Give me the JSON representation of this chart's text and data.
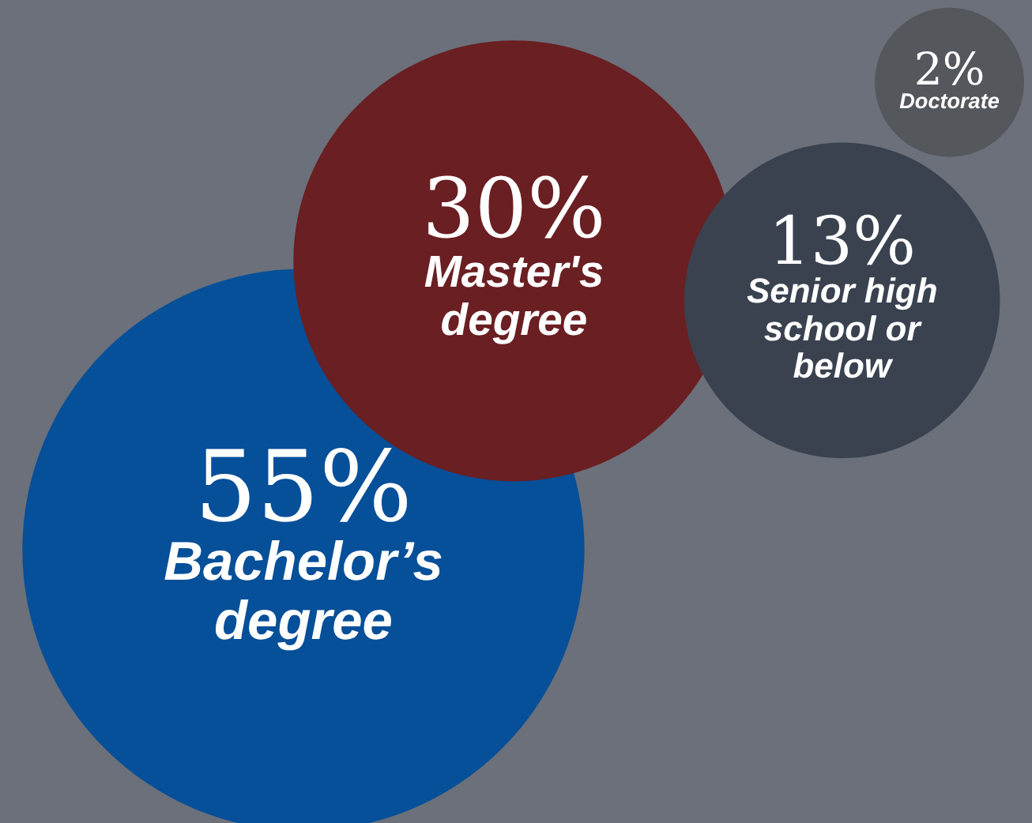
{
  "chart_data": {
    "type": "other",
    "categories": [
      "Bachelor’s degree",
      "Master's degree",
      "Senior high school or below",
      "Doctorate"
    ],
    "values": [
      55,
      30,
      13,
      2
    ],
    "value_labels": [
      "55%",
      "30%",
      "13%",
      "2%"
    ],
    "colors": [
      "#064f99",
      "#6a1f22",
      "#3a4250",
      "#54575c"
    ]
  }
}
